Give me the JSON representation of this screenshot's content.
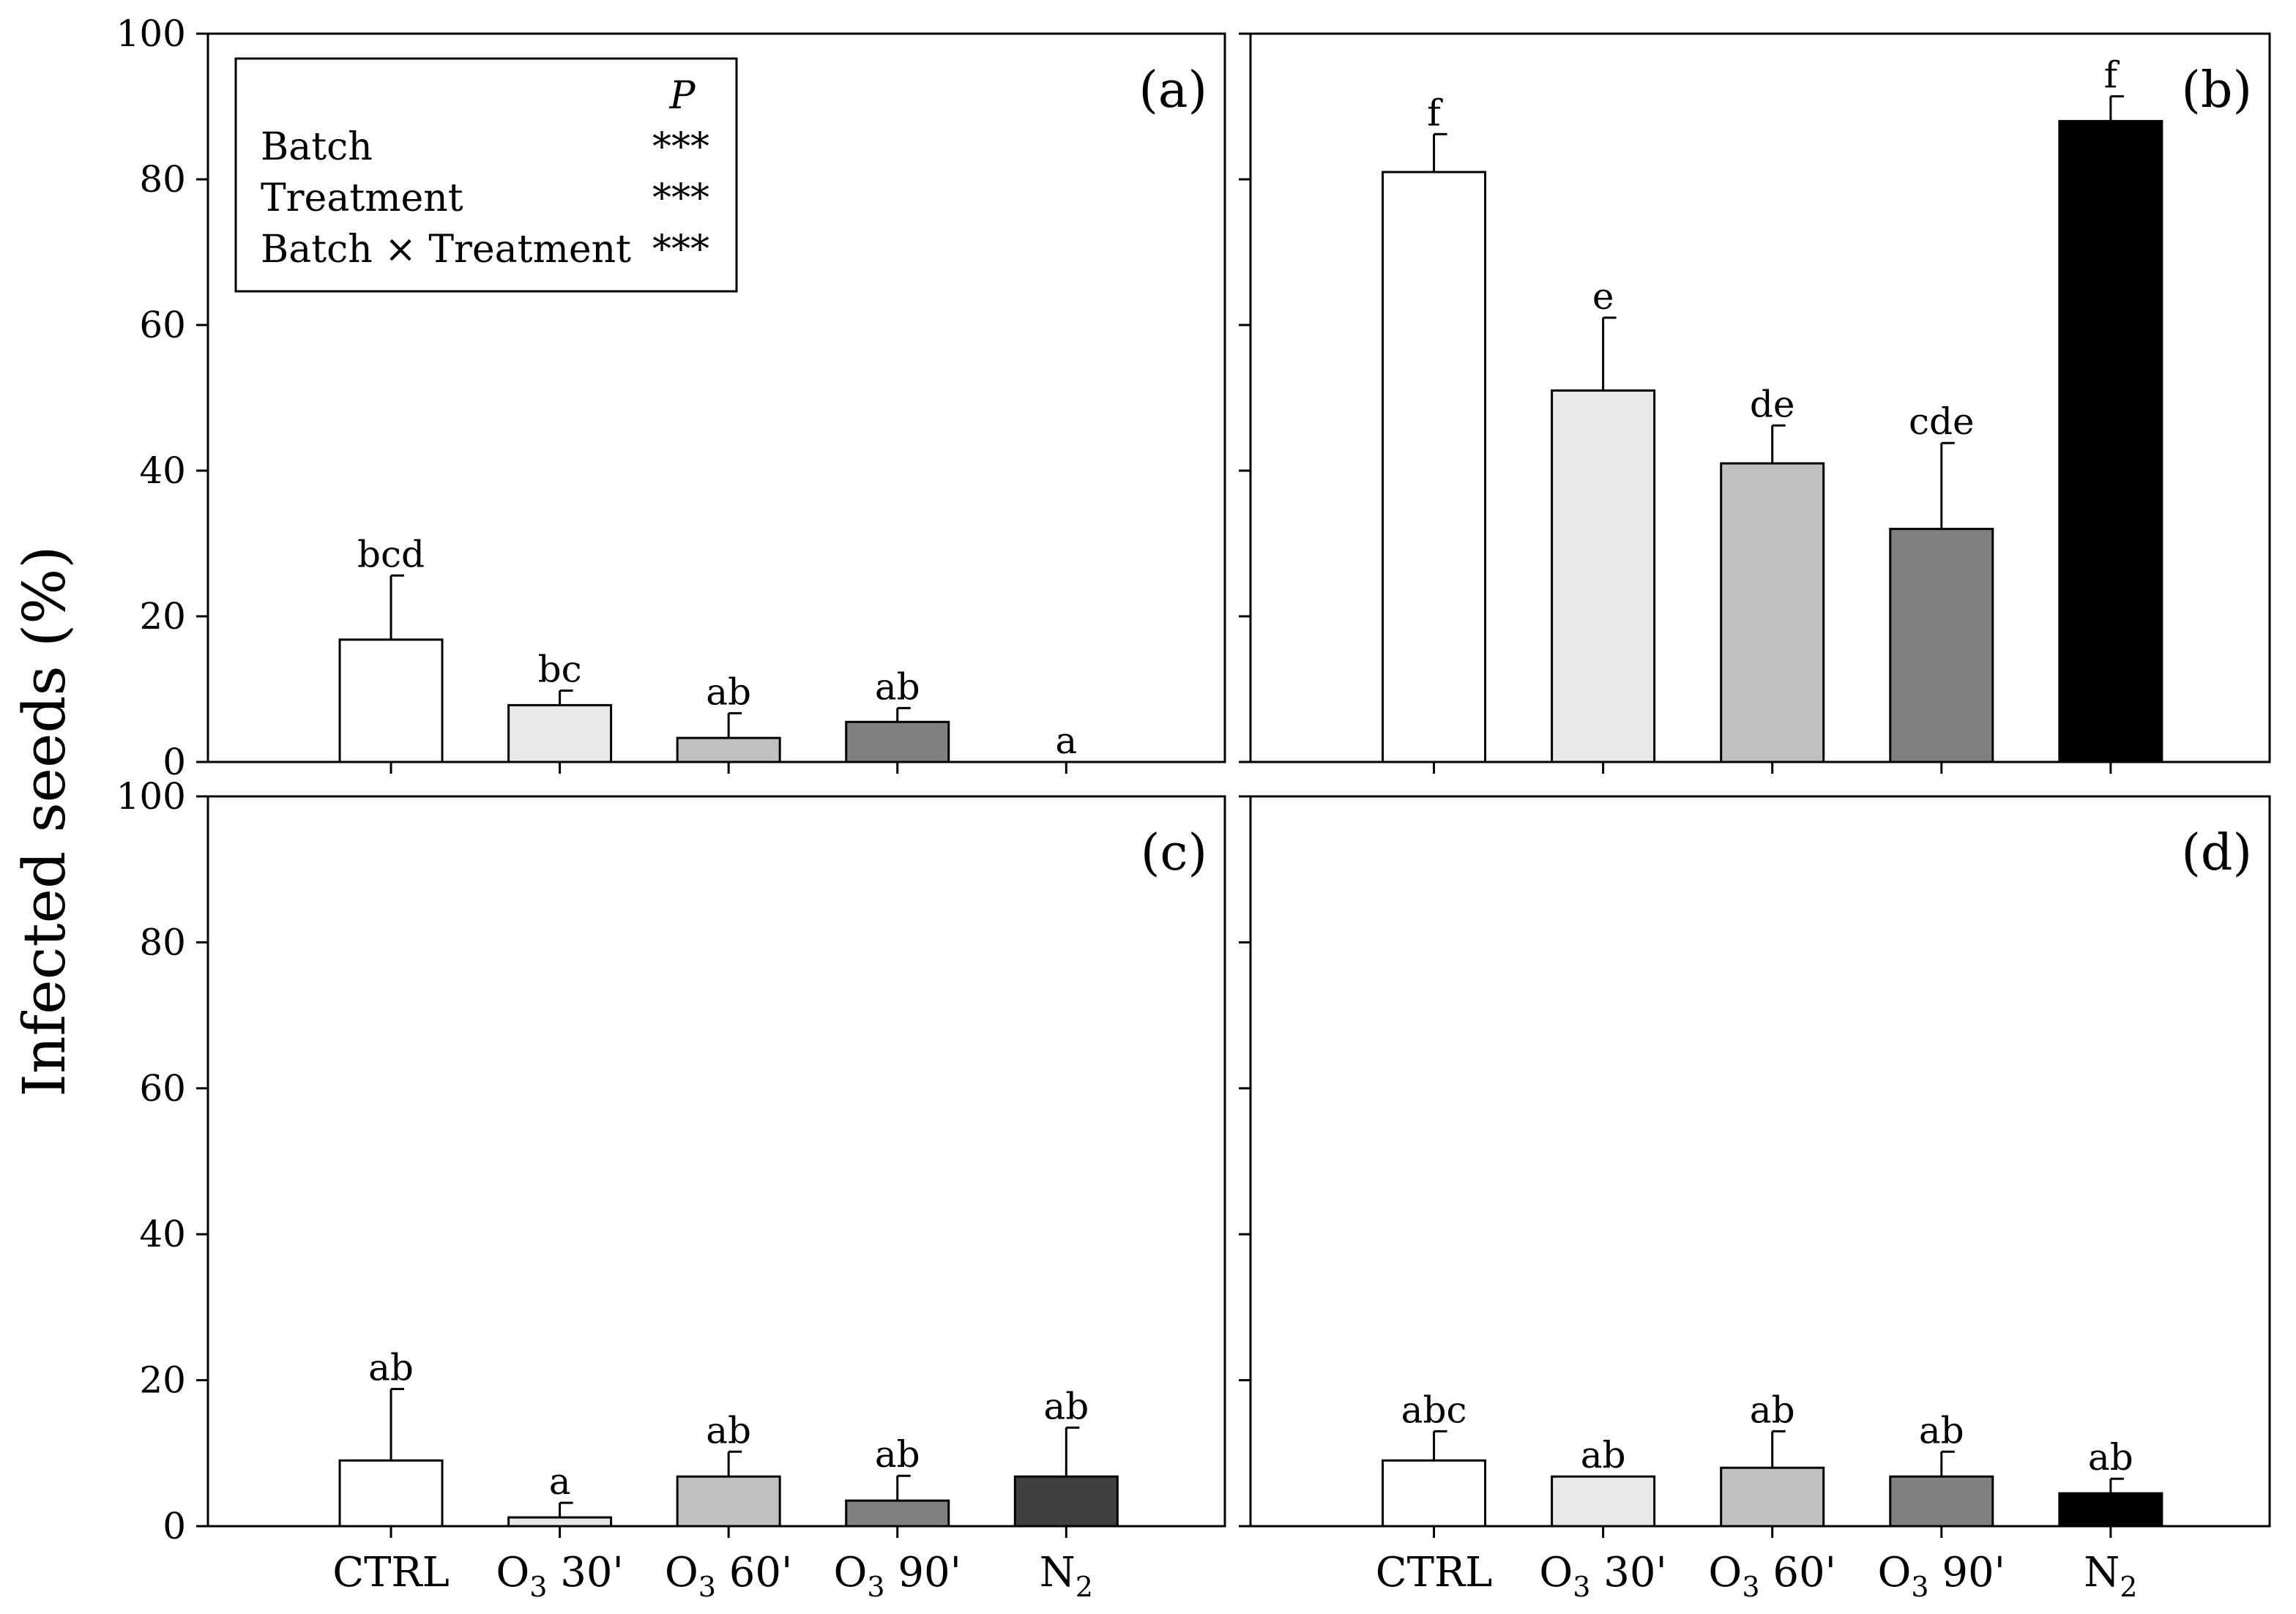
{
  "figure": {
    "ylabel": "Infected seeds (%)"
  },
  "legend": {
    "header": "P",
    "rows": [
      {
        "label": "Batch",
        "value": "***"
      },
      {
        "label": "Treatment",
        "value": "***"
      },
      {
        "label": "Batch × Treatment",
        "value": "***"
      }
    ]
  },
  "chart_data": [
    {
      "type": "bar",
      "panel_label": "(a)",
      "categories": [
        "CTRL",
        "O3 30'",
        "O3 60'",
        "O3 90'",
        "N2"
      ],
      "values": [
        16.8,
        7.8,
        3.3,
        5.5,
        0
      ],
      "errors": [
        8.8,
        2.0,
        3.4,
        1.9,
        0
      ],
      "significance": [
        "bcd",
        "bc",
        "ab",
        "ab",
        "a"
      ],
      "colors": [
        "#ffffff",
        "#e8e8e8",
        "#c0c0c0",
        "#808080",
        "#000000"
      ],
      "ylim": [
        0,
        100
      ],
      "yticks": [
        0,
        20,
        40,
        60,
        80,
        100
      ],
      "ylabel": "Infected seeds (%)",
      "legend": "top-left"
    },
    {
      "type": "bar",
      "panel_label": "(b)",
      "categories": [
        "CTRL",
        "O3 30'",
        "O3 60'",
        "O3 90'",
        "N2"
      ],
      "values": [
        81,
        51,
        41,
        32,
        88
      ],
      "errors": [
        5.2,
        10.0,
        5.2,
        11.8,
        3.4
      ],
      "significance": [
        "f",
        "e",
        "de",
        "cde",
        "f"
      ],
      "colors": [
        "#ffffff",
        "#e8e8e8",
        "#c0c0c0",
        "#808080",
        "#000000"
      ],
      "ylim": [
        0,
        100
      ],
      "yticks": [
        0,
        20,
        40,
        60,
        80,
        100
      ]
    },
    {
      "type": "bar",
      "panel_label": "(c)",
      "categories": [
        "CTRL",
        "O3 30'",
        "O3 60'",
        "O3 90'",
        "N2"
      ],
      "values": [
        9,
        1.2,
        6.8,
        3.5,
        6.8
      ],
      "errors": [
        9.8,
        2.0,
        3.4,
        3.4,
        6.7
      ],
      "significance": [
        "ab",
        "a",
        "ab",
        "ab",
        "ab"
      ],
      "colors": [
        "#ffffff",
        "#e8e8e8",
        "#c0c0c0",
        "#808080",
        "#404040"
      ],
      "ylim": [
        0,
        100
      ],
      "yticks": [
        0,
        20,
        40,
        60,
        80,
        100
      ]
    },
    {
      "type": "bar",
      "panel_label": "(d)",
      "categories": [
        "CTRL",
        "O3 30'",
        "O3 60'",
        "O3 90'",
        "N2"
      ],
      "values": [
        9,
        6.8,
        8,
        6.8,
        4.5
      ],
      "errors": [
        4.0,
        0,
        5.0,
        3.4,
        2.0
      ],
      "significance": [
        "abc",
        "ab",
        "ab",
        "ab",
        "ab"
      ],
      "colors": [
        "#ffffff",
        "#e8e8e8",
        "#c0c0c0",
        "#808080",
        "#000000"
      ],
      "ylim": [
        0,
        100
      ],
      "yticks": [
        0,
        20,
        40,
        60,
        80,
        100
      ]
    }
  ]
}
